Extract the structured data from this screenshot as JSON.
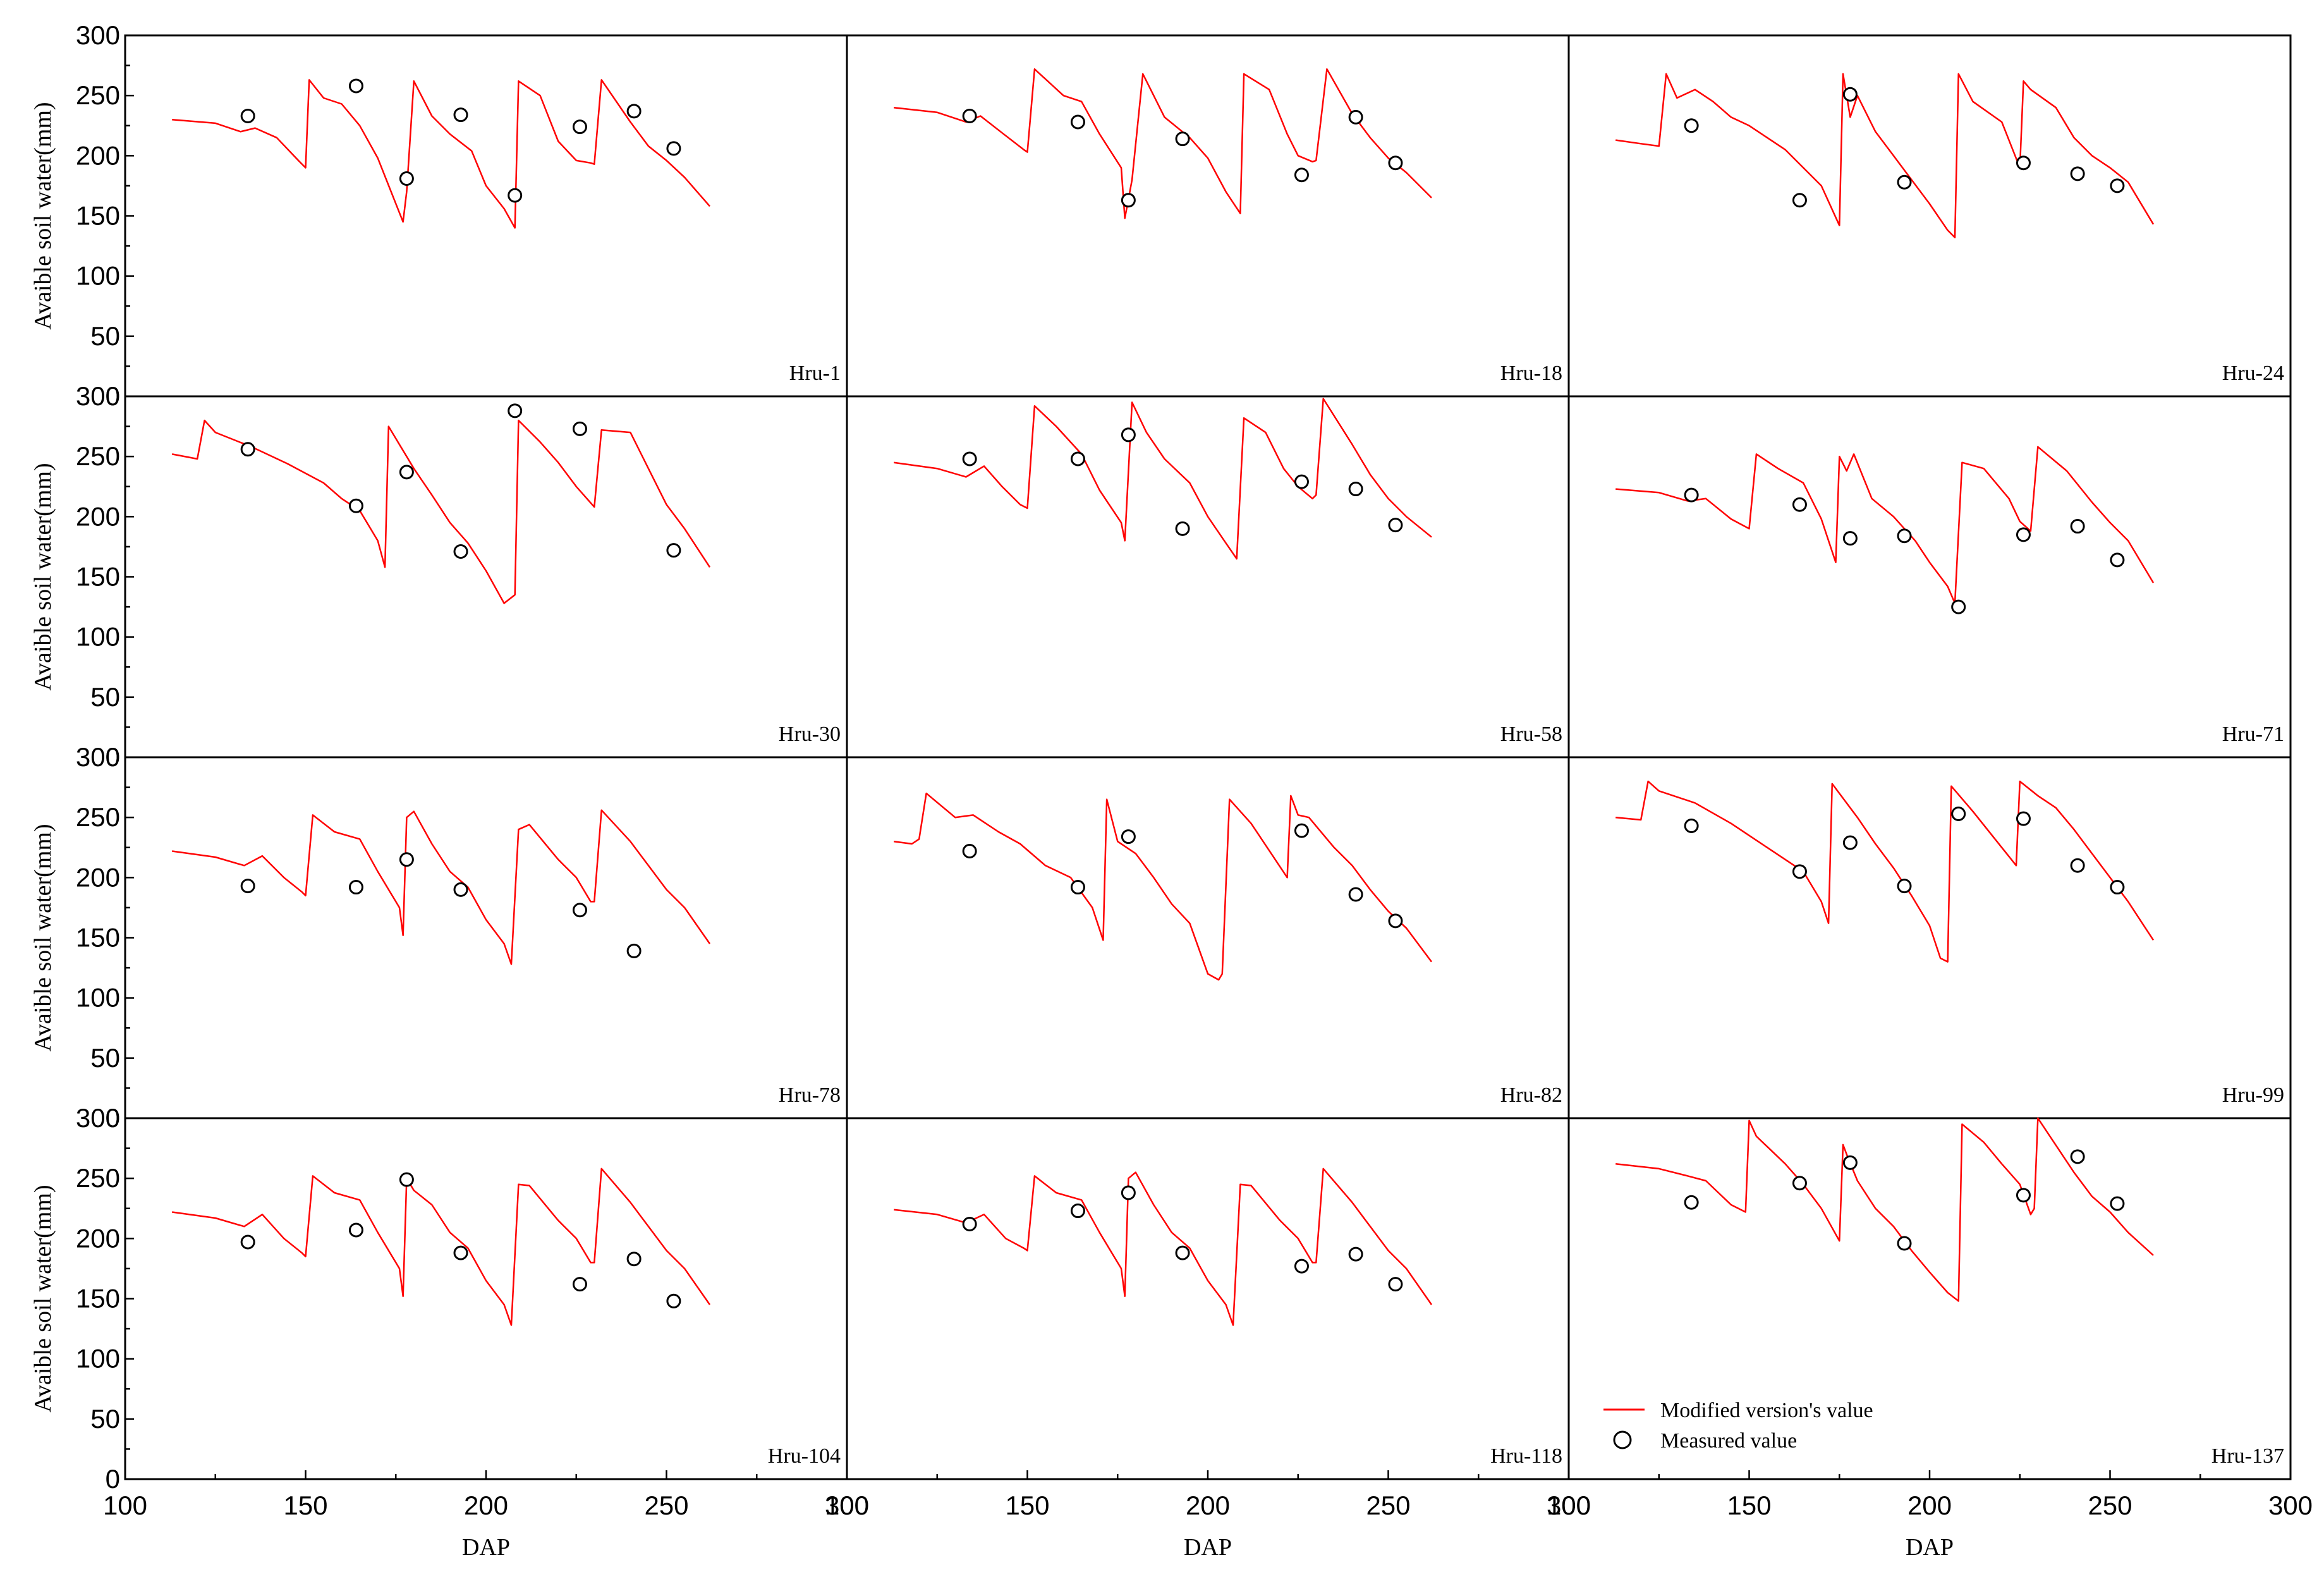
{
  "chart_data": {
    "type": "line",
    "layout": "4 rows x 3 columns of panels with shared axes",
    "x_axis_label": "DAP",
    "y_axis_label": "Avaible soil water(mm)",
    "xlim": [
      100,
      300
    ],
    "ylim": [
      0,
      300
    ],
    "x_ticks": [
      100,
      150,
      200,
      250,
      300
    ],
    "y_ticks": [
      0,
      50,
      100,
      150,
      200,
      250,
      300
    ],
    "grid": false,
    "colors": {
      "simulated": "#ff0000",
      "measured": "#000000",
      "axes": "#000000"
    },
    "legend": {
      "location": "bottom-left of panel Hru-137",
      "entries": [
        {
          "label": "Modified version's value",
          "symbol": "red line"
        },
        {
          "label": "Measured value",
          "symbol": "open circle"
        }
      ]
    },
    "panels": [
      {
        "label": "Hru-1",
        "simulated": {
          "x": [
            113,
            125,
            132,
            136,
            142,
            148,
            150,
            151,
            155,
            160,
            165,
            170,
            177,
            178,
            180,
            185,
            190,
            196,
            200,
            205,
            208,
            209,
            215,
            220,
            225,
            229,
            230,
            232,
            240,
            245,
            250,
            255,
            262
          ],
          "y": [
            230,
            227,
            220,
            223,
            215,
            196,
            190,
            263,
            248,
            243,
            225,
            198,
            145,
            170,
            262,
            233,
            218,
            204,
            175,
            156,
            140,
            262,
            250,
            212,
            196,
            194,
            193,
            263,
            228,
            208,
            196,
            182,
            158
          ]
        },
        "measured": {
          "x": [
            134,
            164,
            178,
            193,
            208,
            226,
            241,
            252
          ],
          "y": [
            233,
            258,
            181,
            234,
            167,
            224,
            237,
            206
          ]
        }
      },
      {
        "label": "Hru-18",
        "simulated": {
          "x": [
            113,
            125,
            133,
            137,
            143,
            149,
            150,
            152,
            160,
            165,
            170,
            176,
            177,
            179,
            182,
            188,
            195,
            200,
            205,
            209,
            210,
            217,
            222,
            225,
            229,
            230,
            233,
            240,
            245,
            250,
            255,
            262
          ],
          "y": [
            240,
            236,
            228,
            233,
            219,
            205,
            203,
            272,
            250,
            245,
            218,
            190,
            148,
            180,
            268,
            232,
            215,
            198,
            170,
            152,
            268,
            255,
            218,
            200,
            195,
            196,
            272,
            235,
            215,
            198,
            186,
            165
          ]
        },
        "measured": {
          "x": [
            134,
            164,
            178,
            193,
            226,
            241,
            252
          ],
          "y": [
            233,
            228,
            163,
            214,
            184,
            232,
            194
          ]
        }
      },
      {
        "label": "Hru-24",
        "simulated": {
          "x": [
            113,
            120,
            125,
            127,
            130,
            135,
            140,
            145,
            150,
            155,
            160,
            165,
            170,
            175,
            176,
            178,
            180,
            185,
            190,
            195,
            200,
            205,
            207,
            208,
            212,
            220,
            225,
            226,
            228,
            235,
            240,
            245,
            250,
            255,
            262
          ],
          "y": [
            213,
            210,
            208,
            268,
            248,
            255,
            245,
            232,
            225,
            215,
            205,
            190,
            175,
            142,
            268,
            232,
            250,
            220,
            200,
            180,
            160,
            138,
            132,
            268,
            245,
            228,
            190,
            262,
            255,
            240,
            215,
            200,
            190,
            178,
            143
          ]
        },
        "measured": {
          "x": [
            134,
            164,
            178,
            193,
            226,
            241,
            252
          ],
          "y": [
            225,
            163,
            251,
            178,
            194,
            185,
            175
          ]
        }
      },
      {
        "label": "Hru-30",
        "simulated": {
          "x": [
            113,
            120,
            122,
            125,
            135,
            145,
            155,
            160,
            165,
            170,
            172,
            173,
            180,
            185,
            190,
            195,
            200,
            205,
            208,
            209,
            215,
            220,
            225,
            230,
            232,
            240,
            245,
            250,
            255,
            262
          ],
          "y": [
            252,
            248,
            280,
            270,
            258,
            244,
            228,
            215,
            205,
            180,
            158,
            275,
            240,
            218,
            195,
            178,
            155,
            128,
            135,
            280,
            262,
            245,
            225,
            208,
            272,
            270,
            240,
            210,
            190,
            158
          ]
        },
        "measured": {
          "x": [
            134,
            164,
            178,
            193,
            208,
            226,
            252
          ],
          "y": [
            256,
            209,
            237,
            171,
            288,
            273,
            172
          ]
        }
      },
      {
        "label": "Hru-58",
        "simulated": {
          "x": [
            113,
            125,
            133,
            138,
            143,
            148,
            150,
            152,
            158,
            165,
            170,
            176,
            177,
            179,
            183,
            188,
            195,
            200,
            205,
            208,
            210,
            216,
            221,
            225,
            229,
            230,
            232,
            240,
            245,
            250,
            255,
            262
          ],
          "y": [
            245,
            240,
            233,
            242,
            225,
            210,
            207,
            292,
            275,
            252,
            222,
            195,
            180,
            295,
            270,
            248,
            228,
            200,
            178,
            165,
            282,
            270,
            240,
            225,
            215,
            218,
            298,
            260,
            235,
            215,
            200,
            183
          ]
        },
        "measured": {
          "x": [
            134,
            164,
            178,
            193,
            226,
            241,
            252
          ],
          "y": [
            248,
            248,
            268,
            190,
            229,
            223,
            193
          ]
        }
      },
      {
        "label": "Hru-71",
        "simulated": {
          "x": [
            113,
            125,
            133,
            138,
            145,
            150,
            152,
            158,
            165,
            170,
            174,
            175,
            177,
            179,
            184,
            190,
            196,
            200,
            205,
            207,
            209,
            215,
            222,
            225,
            228,
            230,
            238,
            245,
            250,
            255,
            262
          ],
          "y": [
            223,
            220,
            213,
            215,
            198,
            190,
            252,
            240,
            228,
            198,
            162,
            250,
            238,
            252,
            215,
            200,
            180,
            162,
            142,
            128,
            245,
            240,
            215,
            196,
            188,
            258,
            238,
            212,
            195,
            180,
            145
          ]
        },
        "measured": {
          "x": [
            134,
            164,
            178,
            193,
            208,
            226,
            241,
            252
          ],
          "y": [
            218,
            210,
            182,
            184,
            125,
            185,
            192,
            164
          ]
        }
      },
      {
        "label": "Hru-78",
        "simulated": {
          "x": [
            113,
            125,
            133,
            138,
            144,
            149,
            150,
            152,
            158,
            165,
            170,
            176,
            177,
            178,
            180,
            185,
            190,
            195,
            200,
            205,
            207,
            209,
            212,
            220,
            225,
            229,
            230,
            232,
            240,
            245,
            250,
            255,
            262
          ],
          "y": [
            222,
            217,
            210,
            218,
            200,
            188,
            185,
            252,
            238,
            232,
            205,
            175,
            152,
            250,
            255,
            228,
            205,
            192,
            165,
            145,
            128,
            240,
            244,
            215,
            200,
            180,
            180,
            256,
            230,
            210,
            190,
            175,
            145
          ]
        },
        "measured": {
          "x": [
            134,
            164,
            178,
            193,
            226,
            241
          ],
          "y": [
            193,
            192,
            215,
            190,
            173,
            139
          ]
        }
      },
      {
        "label": "Hru-82",
        "simulated": {
          "x": [
            113,
            118,
            120,
            122,
            130,
            135,
            142,
            148,
            155,
            162,
            168,
            171,
            172,
            175,
            180,
            185,
            190,
            195,
            200,
            203,
            204,
            206,
            212,
            218,
            222,
            223,
            225,
            228,
            235,
            240,
            245,
            250,
            255,
            262
          ],
          "y": [
            230,
            228,
            232,
            270,
            250,
            252,
            238,
            228,
            210,
            200,
            175,
            148,
            265,
            230,
            220,
            200,
            178,
            162,
            120,
            115,
            120,
            265,
            245,
            218,
            200,
            268,
            252,
            250,
            225,
            210,
            190,
            172,
            158,
            130
          ]
        },
        "measured": {
          "x": [
            134,
            164,
            178,
            226,
            241,
            252
          ],
          "y": [
            222,
            192,
            234,
            239,
            186,
            164
          ]
        }
      },
      {
        "label": "Hru-99",
        "simulated": {
          "x": [
            113,
            120,
            122,
            125,
            135,
            145,
            155,
            160,
            165,
            170,
            172,
            173,
            180,
            185,
            190,
            195,
            200,
            203,
            205,
            206,
            212,
            220,
            224,
            225,
            230,
            235,
            240,
            245,
            250,
            255,
            262
          ],
          "y": [
            250,
            248,
            280,
            272,
            262,
            245,
            225,
            215,
            205,
            180,
            162,
            278,
            250,
            228,
            208,
            185,
            160,
            133,
            130,
            276,
            255,
            225,
            210,
            280,
            268,
            258,
            240,
            220,
            200,
            180,
            148
          ]
        },
        "measured": {
          "x": [
            134,
            164,
            178,
            193,
            208,
            226,
            241,
            252
          ],
          "y": [
            243,
            205,
            229,
            193,
            253,
            249,
            210,
            192
          ]
        }
      },
      {
        "label": "Hru-104",
        "simulated": {
          "x": [
            113,
            125,
            133,
            138,
            144,
            149,
            150,
            152,
            158,
            165,
            170,
            176,
            177,
            178,
            180,
            185,
            190,
            195,
            200,
            205,
            207,
            209,
            212,
            220,
            225,
            229,
            230,
            232,
            240,
            245,
            250,
            255,
            262
          ],
          "y": [
            222,
            217,
            210,
            220,
            200,
            188,
            185,
            252,
            238,
            232,
            205,
            175,
            152,
            250,
            240,
            228,
            205,
            192,
            165,
            145,
            128,
            245,
            244,
            215,
            200,
            180,
            180,
            258,
            230,
            210,
            190,
            175,
            145
          ]
        },
        "measured": {
          "x": [
            134,
            164,
            178,
            193,
            226,
            241,
            252
          ],
          "y": [
            197,
            207,
            249,
            188,
            162,
            183,
            148
          ]
        }
      },
      {
        "label": "Hru-118",
        "simulated": {
          "x": [
            113,
            125,
            133,
            138,
            144,
            149,
            150,
            152,
            158,
            165,
            170,
            176,
            177,
            178,
            180,
            185,
            190,
            195,
            200,
            205,
            207,
            209,
            212,
            220,
            225,
            229,
            230,
            232,
            240,
            245,
            250,
            255,
            262
          ],
          "y": [
            224,
            220,
            213,
            220,
            200,
            192,
            190,
            252,
            238,
            232,
            205,
            175,
            152,
            250,
            255,
            228,
            205,
            192,
            165,
            145,
            128,
            245,
            244,
            215,
            200,
            180,
            180,
            258,
            230,
            210,
            190,
            175,
            145
          ]
        },
        "measured": {
          "x": [
            134,
            164,
            178,
            193,
            226,
            241,
            252
          ],
          "y": [
            212,
            223,
            238,
            188,
            177,
            187,
            162
          ]
        }
      },
      {
        "label": "Hru-137",
        "simulated": {
          "x": [
            113,
            125,
            133,
            138,
            145,
            149,
            150,
            152,
            160,
            165,
            170,
            175,
            176,
            177,
            180,
            185,
            190,
            195,
            200,
            205,
            208,
            209,
            215,
            220,
            225,
            228,
            229,
            230,
            240,
            245,
            250,
            255,
            262
          ],
          "y": [
            262,
            258,
            252,
            248,
            228,
            222,
            298,
            285,
            262,
            245,
            225,
            198,
            278,
            270,
            248,
            225,
            210,
            190,
            172,
            155,
            148,
            295,
            280,
            262,
            245,
            220,
            225,
            300,
            255,
            235,
            222,
            205,
            186
          ]
        },
        "measured": {
          "x": [
            134,
            164,
            178,
            193,
            226,
            241,
            252
          ],
          "y": [
            230,
            246,
            263,
            196,
            236,
            268,
            229
          ]
        }
      }
    ]
  }
}
